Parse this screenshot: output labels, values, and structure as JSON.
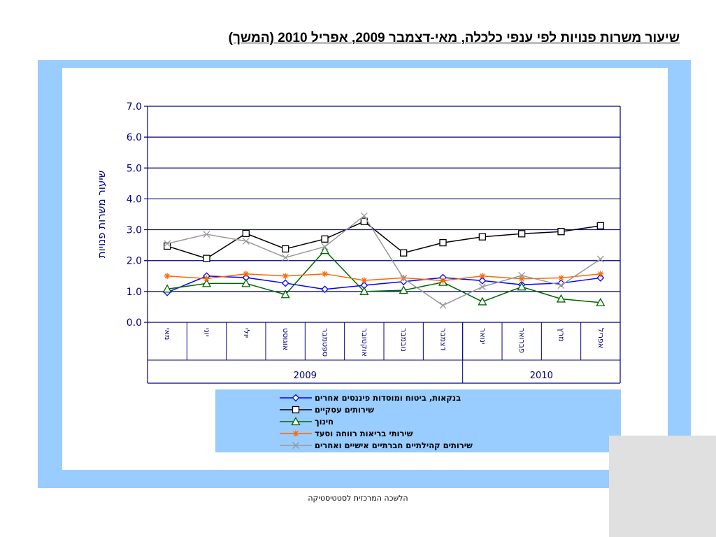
{
  "title": "שיעור משרות פנויות לפי ענפי כלכלה, מאי-דצמבר  2009, אפריל 2010 (המשך)",
  "footer": "הלשכה המרכזית לסטטיסטיקה",
  "colors": {
    "frame": "#99ccff",
    "axis": "#000080",
    "legend_bg": "#99ccff"
  },
  "chart_data": {
    "type": "line",
    "ylabel": "שיעור משרות פנויות",
    "ylim": [
      0,
      7
    ],
    "yticks": [
      "0.0",
      "1.0",
      "2.0",
      "3.0",
      "4.0",
      "5.0",
      "6.0",
      "7.0"
    ],
    "grid": true,
    "legend_position": "bottom",
    "categories": [
      "מאי",
      "יוני",
      "יולי",
      "אוגוסט",
      "ספטמבר",
      "אוקטובר",
      "נובמבר",
      "דצמבר",
      "ינואר",
      "פברואר",
      "מרץ",
      "אפריל"
    ],
    "year_groups": [
      {
        "label": "2009",
        "count": 8
      },
      {
        "label": "2010",
        "count": 4
      }
    ],
    "series": [
      {
        "name": "בנקאות, ביטוח  ומוסדות פיננסים  אחרים",
        "color": "#0000ff",
        "marker": "diamond",
        "values": [
          0.97,
          1.5,
          1.45,
          1.27,
          1.07,
          1.2,
          1.32,
          1.45,
          1.35,
          1.22,
          1.27,
          1.44
        ]
      },
      {
        "name": "שירותים עסקיים",
        "color": "#000000",
        "marker": "square",
        "values": [
          2.47,
          2.07,
          2.88,
          2.38,
          2.7,
          3.27,
          2.25,
          2.58,
          2.77,
          2.87,
          2.94,
          3.13
        ]
      },
      {
        "name": "חינוך",
        "color": "#006600",
        "marker": "triangle",
        "values": [
          1.08,
          1.26,
          1.26,
          0.9,
          2.33,
          1.0,
          1.04,
          1.3,
          0.67,
          1.15,
          0.76,
          0.64
        ]
      },
      {
        "name": "שירותי בריאות רווחה וסעד",
        "color": "#ff6600",
        "marker": "star",
        "values": [
          1.5,
          1.42,
          1.57,
          1.5,
          1.57,
          1.36,
          1.44,
          1.35,
          1.5,
          1.41,
          1.44,
          1.57
        ]
      },
      {
        "name": "שירותים קהילתיים חברתיים אישיים ואחרים",
        "color": "#999999",
        "marker": "x",
        "values": [
          2.55,
          2.85,
          2.63,
          2.1,
          2.45,
          3.45,
          1.42,
          0.55,
          1.15,
          1.52,
          1.2,
          2.05
        ]
      }
    ]
  }
}
